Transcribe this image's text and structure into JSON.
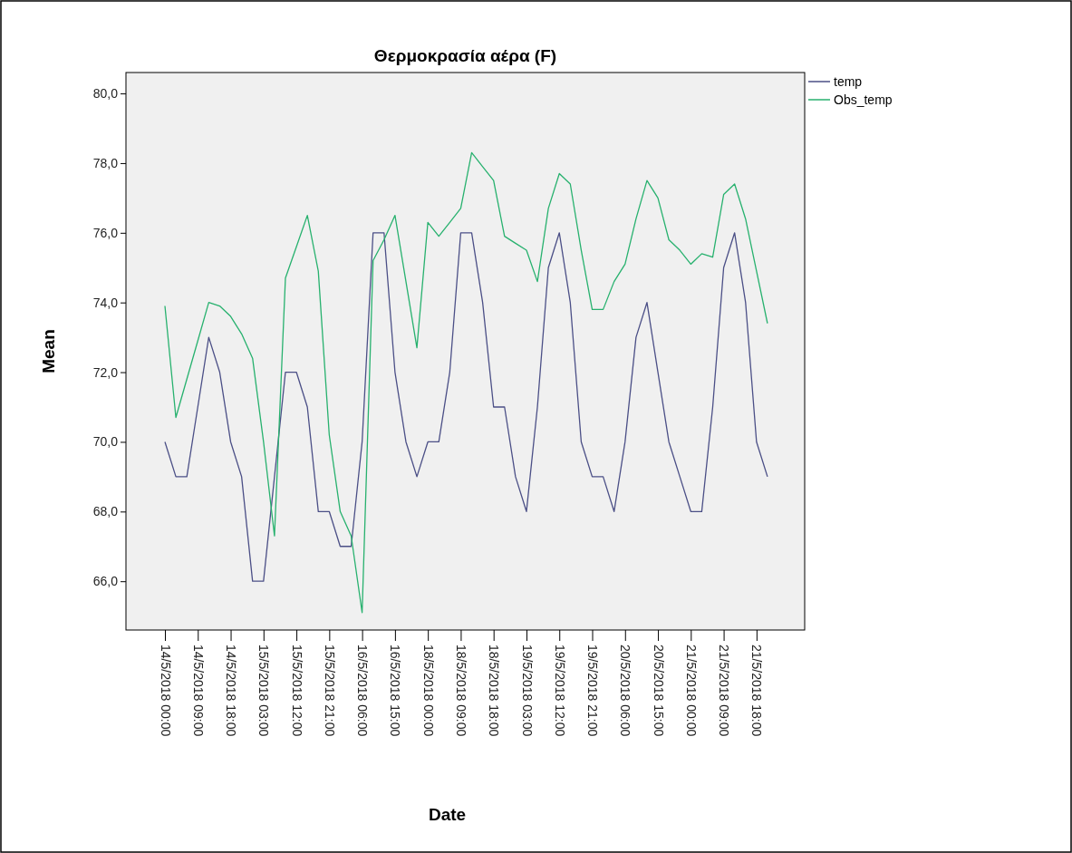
{
  "chart_data": {
    "type": "line",
    "title": "Θερμοκρασία αέρα (F)",
    "xlabel": "Date",
    "ylabel": "Mean",
    "categories": [
      "14/5/2018 00:00",
      null,
      null,
      "14/5/2018 09:00",
      null,
      null,
      "14/5/2018 18:00",
      null,
      null,
      "15/5/2018 03:00",
      null,
      null,
      "15/5/2018 12:00",
      null,
      null,
      "15/5/2018 21:00",
      null,
      null,
      "16/5/2018 06:00",
      null,
      null,
      "16/5/2018 15:00",
      null,
      null,
      "18/5/2018 00:00",
      null,
      null,
      "18/5/2018 09:00",
      null,
      null,
      "18/5/2018 18:00",
      null,
      null,
      "19/5/2018 03:00",
      null,
      null,
      "19/5/2018 12:00",
      null,
      null,
      "19/5/2018 21:00",
      null,
      null,
      "20/5/2018 06:00",
      null,
      null,
      "20/5/2018 15:00",
      null,
      null,
      "21/5/2018 00:00",
      null,
      null,
      "21/5/2018 09:00",
      null,
      null,
      "21/5/2018 18:00",
      null
    ],
    "series": [
      {
        "name": "temp",
        "color": "#4b4f86",
        "values": [
          70,
          69,
          69,
          71,
          73,
          72,
          70,
          69,
          66,
          66,
          69,
          72,
          72,
          71,
          68,
          68,
          67,
          67,
          70,
          76,
          76,
          72,
          70,
          69,
          70,
          70,
          72,
          76,
          76,
          74,
          71,
          71,
          69,
          68,
          71,
          75,
          76,
          74,
          70,
          69,
          69,
          68,
          70,
          73,
          74,
          72,
          70,
          69,
          68,
          68,
          71,
          75,
          76,
          74,
          70,
          69
        ]
      },
      {
        "name": "Obs_temp",
        "color": "#27b16e",
        "values": [
          73.9,
          70.7,
          71.8,
          72.9,
          74.0,
          73.9,
          73.6,
          73.1,
          72.4,
          70.0,
          67.3,
          74.7,
          75.6,
          76.5,
          74.9,
          70.2,
          68.0,
          67.3,
          65.1,
          75.2,
          75.8,
          76.5,
          74.6,
          72.7,
          76.3,
          75.9,
          76.3,
          76.7,
          78.3,
          77.9,
          77.5,
          75.9,
          75.7,
          75.5,
          74.6,
          76.7,
          77.7,
          77.4,
          75.5,
          73.8,
          73.8,
          74.6,
          75.1,
          76.4,
          77.5,
          77.0,
          75.8,
          75.5,
          75.1,
          75.4,
          75.3,
          77.1,
          77.4,
          76.4,
          74.9,
          73.4
        ]
      }
    ],
    "ylim": [
      64.6,
      80.6
    ],
    "yticks": [
      {
        "value": 66,
        "label": "66,0"
      },
      {
        "value": 68,
        "label": "68,0"
      },
      {
        "value": 70,
        "label": "70,0"
      },
      {
        "value": 72,
        "label": "72,0"
      },
      {
        "value": 74,
        "label": "74,0"
      },
      {
        "value": 76,
        "label": "76,0"
      },
      {
        "value": 78,
        "label": "78,0"
      },
      {
        "value": 80,
        "label": "80,0"
      }
    ],
    "legend": "top right"
  }
}
